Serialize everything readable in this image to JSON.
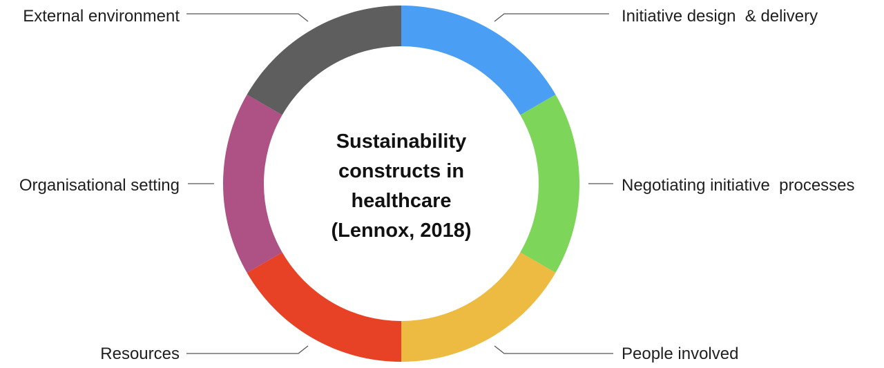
{
  "center": {
    "lines": [
      "Sustainability",
      "constructs in",
      "healthcare",
      "(Lennox, 2018)"
    ]
  },
  "segments": [
    {
      "id": "initiative-design-delivery",
      "label": "Initiative design  & delivery",
      "color": "#4A9FF5"
    },
    {
      "id": "negotiating-initiative-processes",
      "label": "Negotiating initiative  processes",
      "color": "#7DD55A"
    },
    {
      "id": "people-involved",
      "label": "People involved",
      "color": "#EDBB42"
    },
    {
      "id": "resources",
      "label": "Resources",
      "color": "#E84226"
    },
    {
      "id": "organisational-setting",
      "label": "Organisational setting",
      "color": "#AE5184"
    },
    {
      "id": "external-environment",
      "label": "External environment",
      "color": "#5E5E5E"
    }
  ]
}
